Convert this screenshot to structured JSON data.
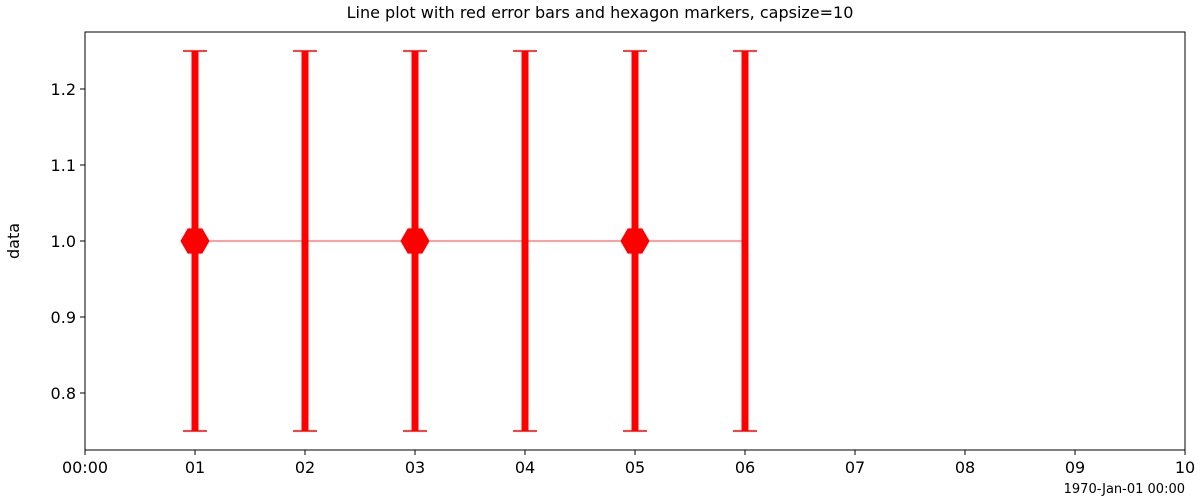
{
  "chart_data": {
    "type": "line",
    "title": "Line plot with red error bars and hexagon markers, capsize=10",
    "xlabel": "",
    "ylabel": "data",
    "x_axis_offset_label": "1970-Jan-01 00:00",
    "x_tick_labels": [
      "00:00",
      "01",
      "02",
      "03",
      "04",
      "05",
      "06",
      "07",
      "08",
      "09",
      "10"
    ],
    "x_tick_values": [
      0,
      1,
      2,
      3,
      4,
      5,
      6,
      7,
      8,
      9,
      10
    ],
    "y_tick_labels": [
      "0.8",
      "0.9",
      "1.0",
      "1.1",
      "1.2"
    ],
    "y_tick_values": [
      0.8,
      0.9,
      1.0,
      1.1,
      1.2
    ],
    "xlim": [
      0,
      10
    ],
    "ylim": [
      0.725,
      1.275
    ],
    "grid": false,
    "series": [
      {
        "x": [
          1,
          2,
          3,
          4,
          5,
          6
        ],
        "y": [
          1.0,
          1.0,
          1.0,
          1.0,
          1.0,
          1.0
        ],
        "yerr": [
          0.25,
          0.25,
          0.25,
          0.25,
          0.25,
          0.25
        ],
        "marker": "hexagon",
        "markevery": 2,
        "color": "#ff0000",
        "capsize": 10
      }
    ]
  }
}
